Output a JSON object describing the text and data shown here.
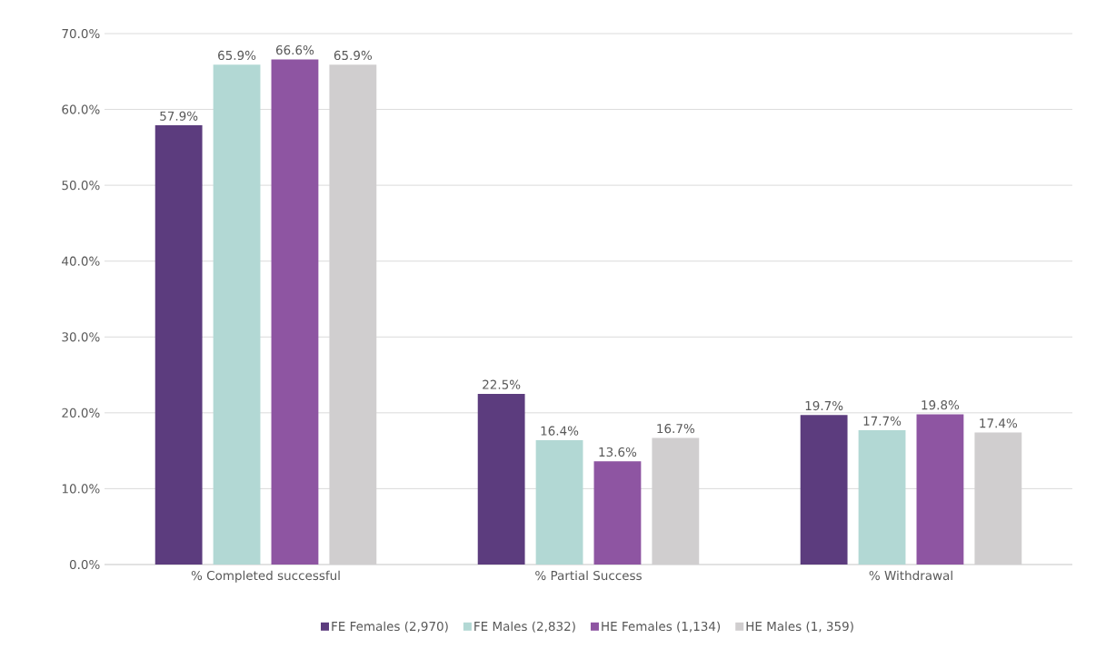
{
  "chart_data": {
    "type": "bar",
    "categories": [
      "% Completed successful",
      "% Partial Success",
      "% Withdrawal"
    ],
    "series": [
      {
        "name": "FE Females (2,970)",
        "color": "#5c3c7e",
        "values": [
          57.9,
          22.5,
          19.7
        ],
        "value_labels": [
          "57.9%",
          "22.5%",
          "19.7%"
        ]
      },
      {
        "name": "FE Males (2,832)",
        "color": "#b2d8d4",
        "values": [
          65.9,
          16.4,
          17.7
        ],
        "value_labels": [
          "65.9%",
          "16.4%",
          "17.7%"
        ]
      },
      {
        "name": "HE Females (1,134)",
        "color": "#8e55a2",
        "values": [
          66.6,
          13.6,
          19.8
        ],
        "value_labels": [
          "66.6%",
          "13.6%",
          "19.8%"
        ]
      },
      {
        "name": "HE Males (1, 359)",
        "color": "#d0cecf",
        "values": [
          65.9,
          16.7,
          17.4
        ],
        "value_labels": [
          "65.9%",
          "16.7%",
          "17.4%"
        ]
      }
    ],
    "ylim": [
      0,
      70
    ],
    "yticks": [
      {
        "value": 0,
        "label": "0.0%"
      },
      {
        "value": 10,
        "label": "10.0%"
      },
      {
        "value": 20,
        "label": "20.0%"
      },
      {
        "value": 30,
        "label": "30.0%"
      },
      {
        "value": 40,
        "label": "40.0%"
      },
      {
        "value": 50,
        "label": "50.0%"
      },
      {
        "value": 60,
        "label": "60.0%"
      },
      {
        "value": 70,
        "label": "70.0%"
      }
    ],
    "grid": "y",
    "legend": "bottom"
  }
}
